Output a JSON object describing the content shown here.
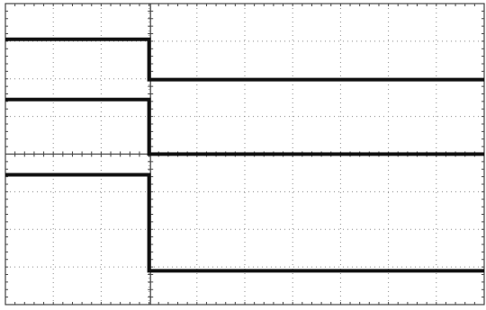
{
  "chart_data": {
    "type": "line",
    "title": "",
    "xlabel": "",
    "ylabel": "",
    "grid": true,
    "legend": "none",
    "divisions": {
      "x": 10,
      "y": 8
    },
    "xlim": [
      -3,
      7
    ],
    "ylim": [
      -4,
      4
    ],
    "step_at": 0,
    "series": [
      {
        "x": [
          -3,
          0,
          0,
          7
        ],
        "values": [
          3.05,
          3.05,
          1.98,
          1.98
        ]
      },
      {
        "x": [
          -3,
          0,
          0,
          7
        ],
        "values": [
          1.45,
          1.45,
          0.0,
          0.0
        ]
      },
      {
        "x": [
          -3,
          0,
          0,
          7
        ],
        "values": [
          -0.55,
          -0.55,
          -3.1,
          -3.1
        ]
      }
    ]
  },
  "colors": {
    "trace": "#111111",
    "grid_dotted": "#8a8a8a",
    "frame": "#444444",
    "background": "#ffffff"
  }
}
